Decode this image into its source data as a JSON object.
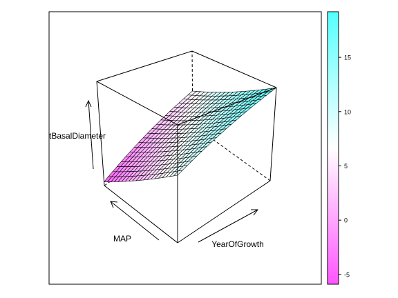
{
  "chart_data": {
    "type": "surface",
    "axes": {
      "x": {
        "label": "MAP",
        "range": [
          0,
          1
        ]
      },
      "y": {
        "label": "YearOfGrowth",
        "range": [
          0,
          1
        ]
      },
      "z": {
        "label": "tBasalDiameter",
        "range": [
          -5.9,
          19.2
        ]
      }
    },
    "surface_corner_values": {
      "z_at_x0_y0": 8.5,
      "z_at_x1_y0": -5.0,
      "z_at_x0_y1": 19.2,
      "z_at_x1_y1": 5.6
    },
    "grid": {
      "x_steps": 20,
      "y_steps": 20
    },
    "colorkey": {
      "ticks": [
        -5,
        0,
        5,
        10,
        15
      ],
      "tick_labels": [
        "-5",
        "0",
        "5",
        "10",
        "15"
      ],
      "range": [
        -5.9,
        19.2
      ],
      "low_color": "#ff55ff",
      "mid_color": "#ffffff",
      "high_color": "#55ffff"
    },
    "box": true,
    "legend_position": "right"
  }
}
